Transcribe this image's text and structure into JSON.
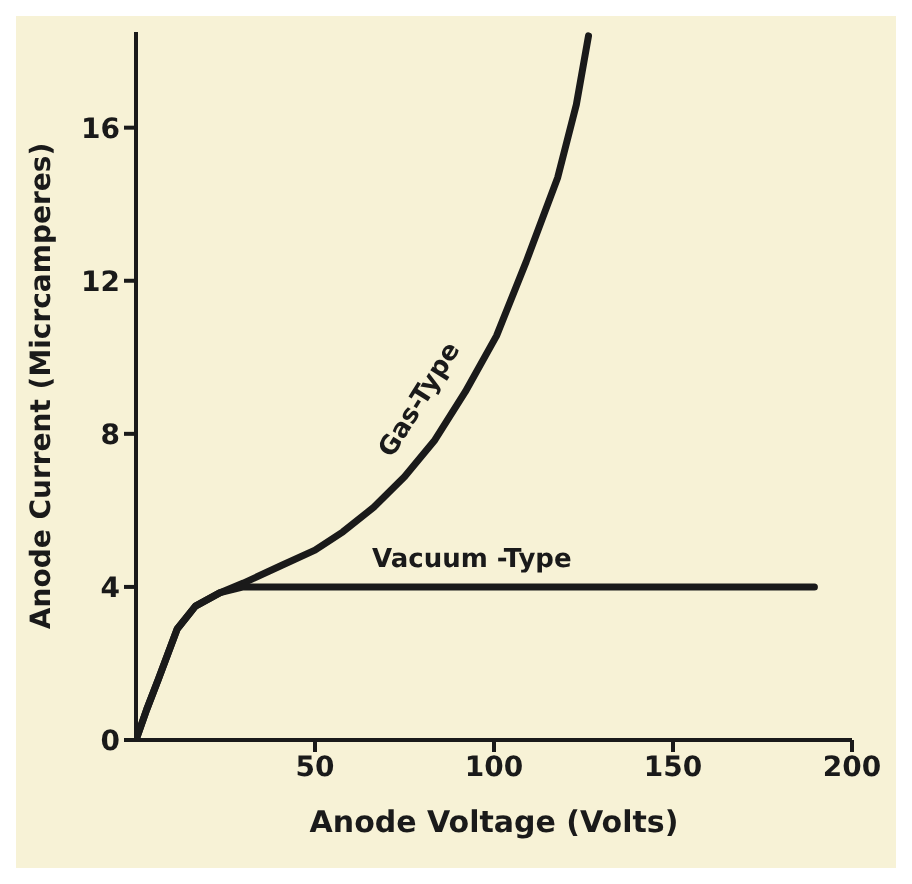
{
  "chart_data": {
    "type": "line",
    "xlabel": "Anode Voltage (Volts)",
    "ylabel": "Anode Current (Micrcamperes)",
    "xlim": [
      0,
      200
    ],
    "xticks": [
      50,
      100,
      150,
      200
    ],
    "ylim": [
      0,
      18.5
    ],
    "yticks": [
      0,
      4,
      8,
      12,
      16
    ],
    "grid": false,
    "legend": false,
    "marker": "none",
    "line_style": "solid",
    "series": [
      {
        "name": "Gas-Type",
        "color": "#1a1a1a",
        "x": [
          0,
          3,
          6.3,
          11.5,
          16.6,
          23.5,
          30,
          40.6,
          50,
          57.8,
          66.4,
          75,
          83.5,
          92,
          100.7,
          109,
          117.8,
          123,
          126.4
        ],
        "values": [
          0,
          0.8,
          1.6,
          2.9,
          3.5,
          3.85,
          4.1,
          4.56,
          4.96,
          5.44,
          6.08,
          6.88,
          7.84,
          9.1,
          10.56,
          12.5,
          14.7,
          16.6,
          18.4
        ]
      },
      {
        "name": "Vacuum -Type",
        "color": "#1a1a1a",
        "x": [
          0,
          3,
          6.3,
          11.5,
          16.6,
          23.5,
          30,
          189.5
        ],
        "values": [
          0,
          0.8,
          1.6,
          2.9,
          3.5,
          3.85,
          4,
          4
        ]
      }
    ]
  }
}
